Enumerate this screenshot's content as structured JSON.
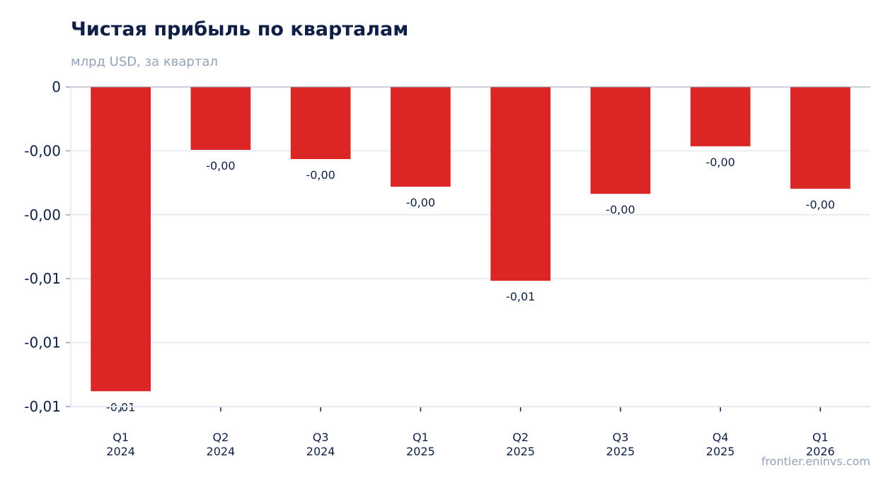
{
  "chart_data": {
    "type": "bar",
    "title": "Чистая прибыль по кварталам",
    "subtitle": "млрд USD, за квартал",
    "categories": [
      [
        "Q1",
        "2024"
      ],
      [
        "Q2",
        "2024"
      ],
      [
        "Q3",
        "2024"
      ],
      [
        "Q1",
        "2025"
      ],
      [
        "Q2",
        "2025"
      ],
      [
        "Q3",
        "2025"
      ],
      [
        "Q4",
        "2025"
      ],
      [
        "Q1",
        "2026"
      ]
    ],
    "values": [
      -0.0119,
      -0.00246,
      -0.00282,
      -0.0039,
      -0.00758,
      -0.00418,
      -0.00232,
      -0.00398
    ],
    "data_labels": [
      "-0,01",
      "-0,00",
      "-0,00",
      "-0,00",
      "-0,01",
      "-0,00",
      "-0,00",
      "-0,00"
    ],
    "ytick_labels": [
      "0",
      "-0,00",
      "-0,00",
      "-0,01",
      "-0,01",
      "-0,01"
    ],
    "ylim": [
      -0.0125,
      0
    ],
    "grid": true,
    "legend": "none",
    "bar_color": "#dc2626",
    "xlabel": "",
    "ylabel": ""
  },
  "source": "frontier.eninvs.com"
}
